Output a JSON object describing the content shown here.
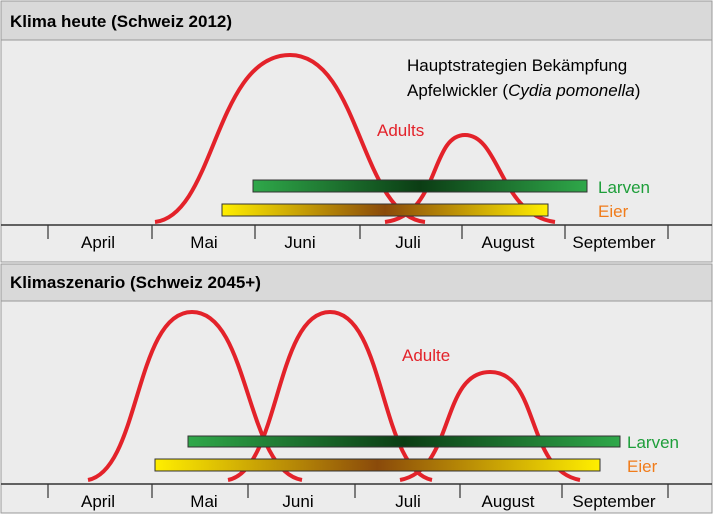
{
  "panels": [
    {
      "title": "Klima heute (Schweiz 2012)",
      "annotation": {
        "line1": "Hauptstrategien Bekämpfung",
        "line2_start": "Apfelwickler (",
        "line2_italic": "Cydia pomonella",
        "line2_end": ")"
      },
      "adults_label": "Adults",
      "larvae_label": "Larven",
      "eggs_label": "Eier",
      "months": [
        "April",
        "Mai",
        "Juni",
        "Juli",
        "August",
        "September"
      ]
    },
    {
      "title": "Klimaszenario (Schweiz 2045+)",
      "adults_label": "Adulte",
      "larvae_label": "Larven",
      "eggs_label": "Eier",
      "months": [
        "April",
        "Mai",
        "Juni",
        "Juli",
        "August",
        "September"
      ]
    }
  ]
}
